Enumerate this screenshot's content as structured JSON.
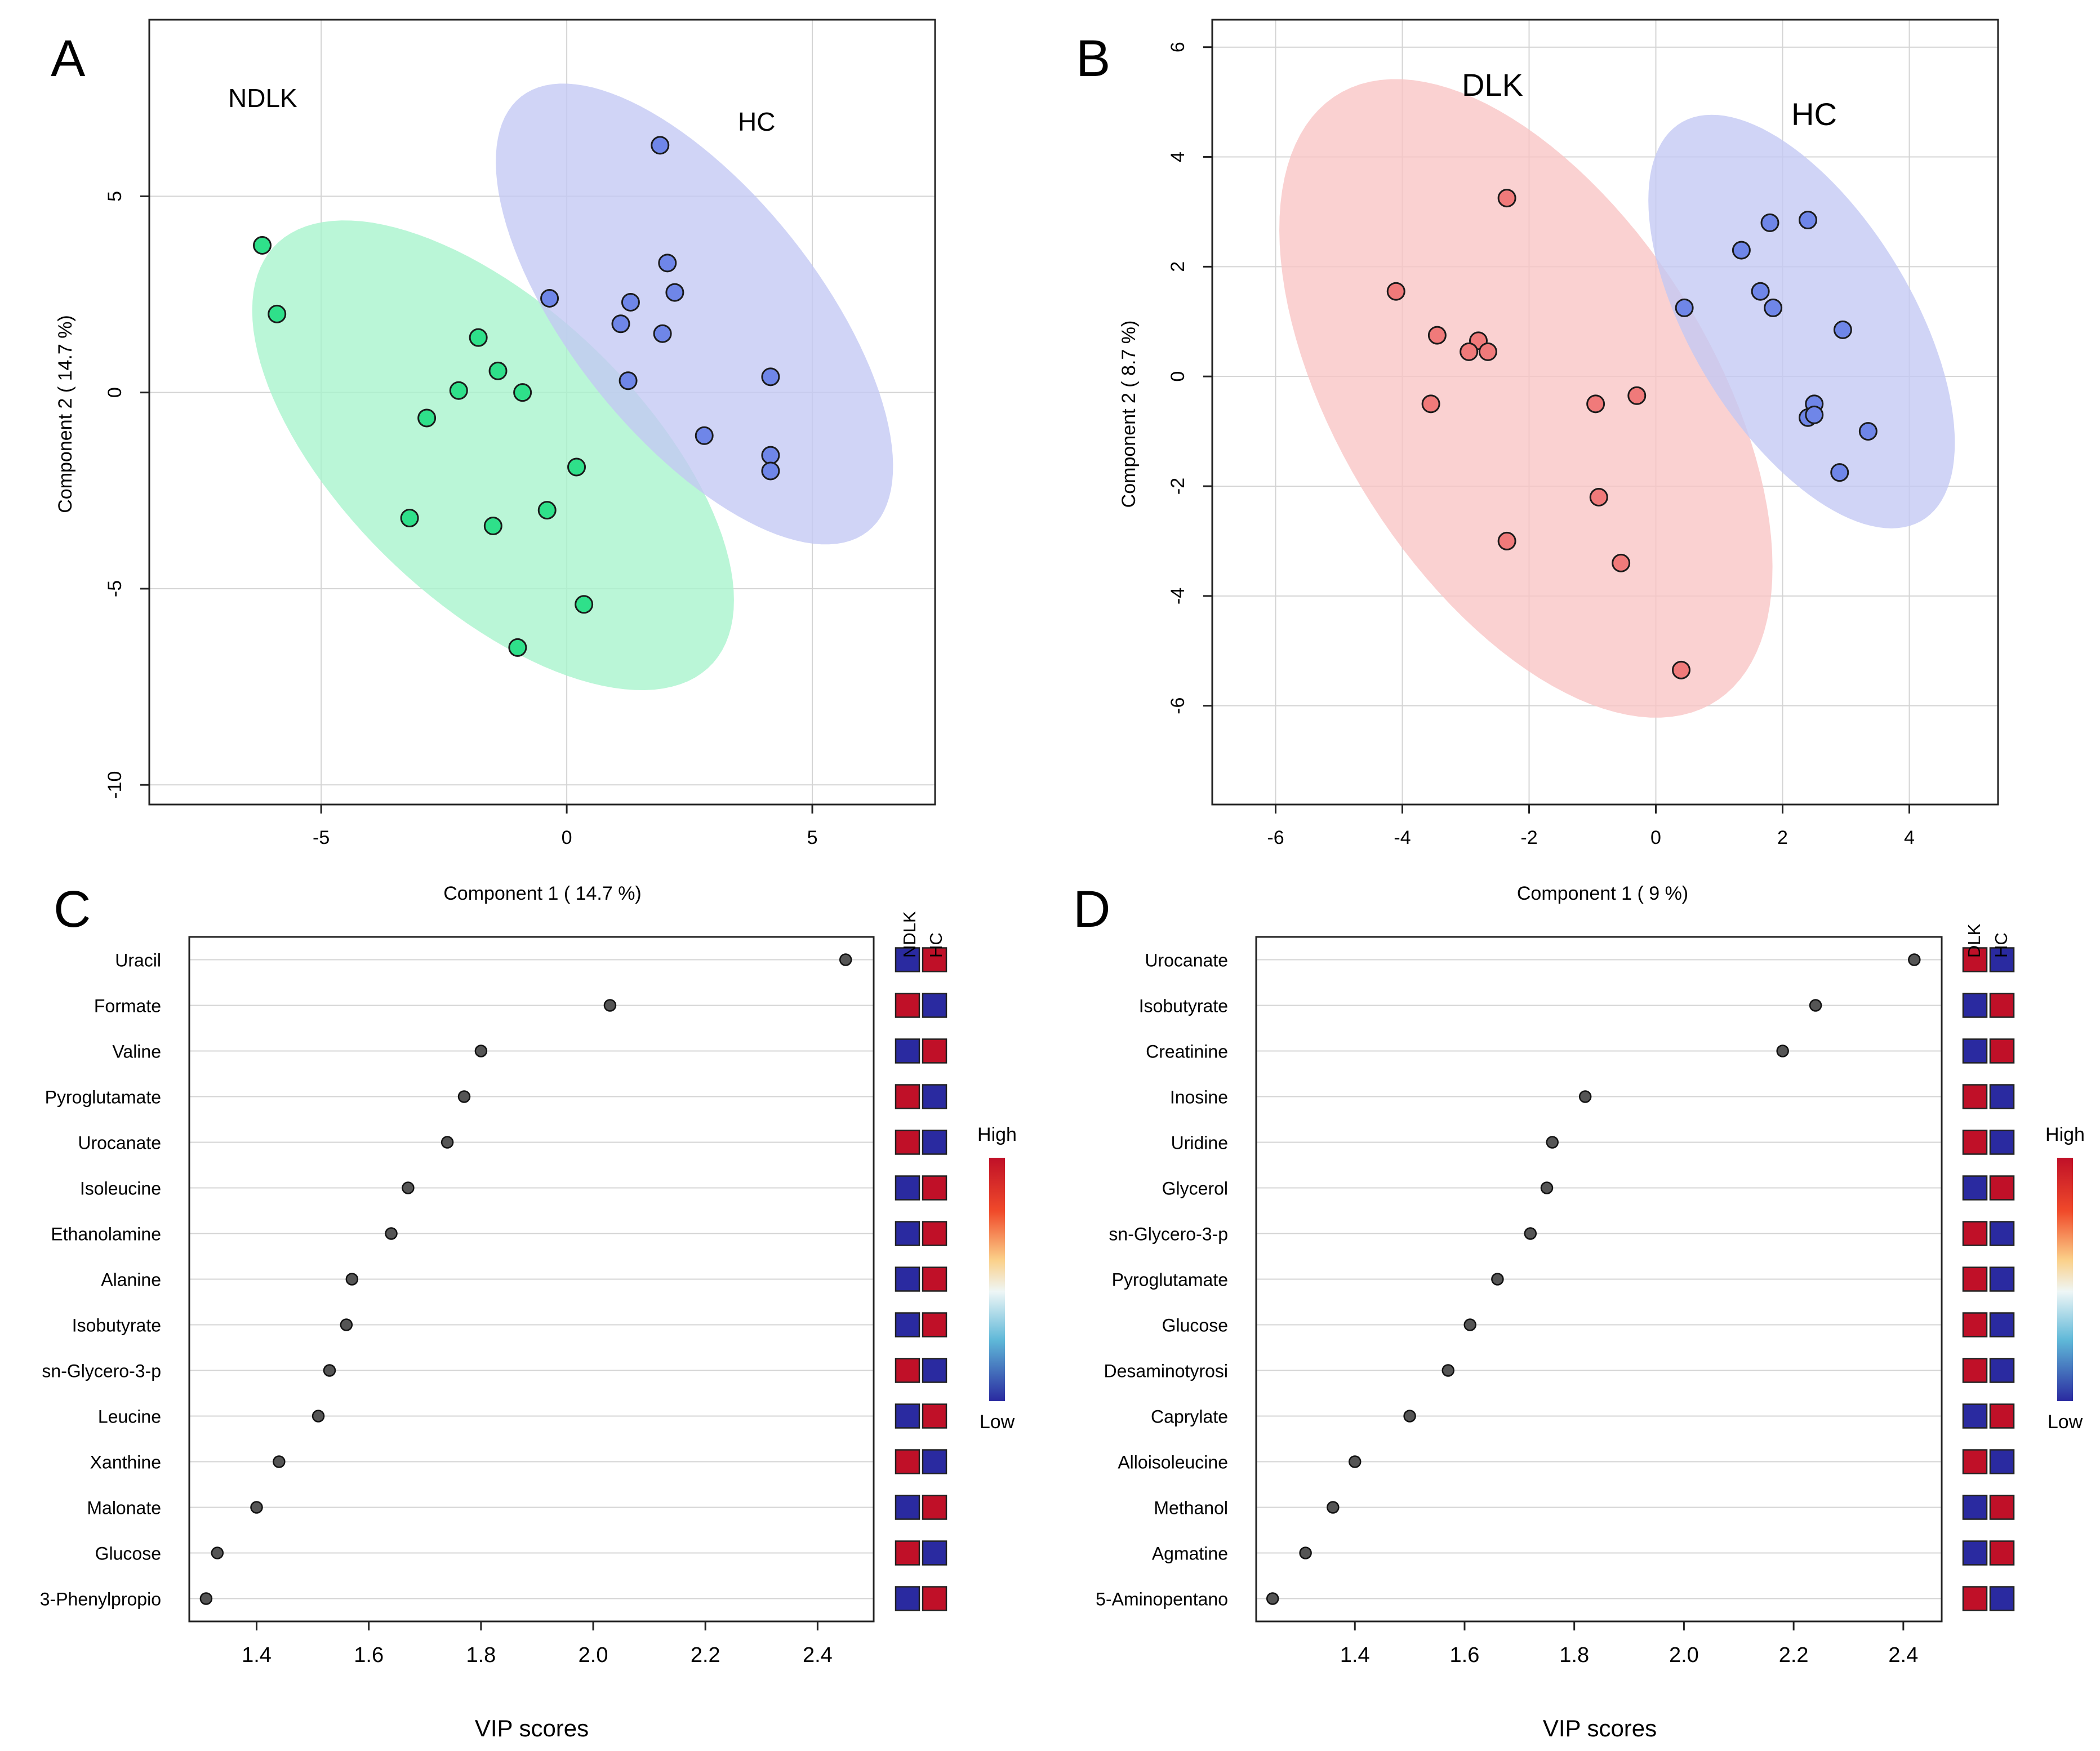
{
  "colors": {
    "ndlk_fill": "#a6f4cc",
    "ndlk_point": "#2fe08a",
    "hc_fill": "#c3c8f4",
    "hc_point": "#6f86e8",
    "dlk_fill": "#f8c4c4",
    "dlk_point": "#f07a7a",
    "high": "#c01028",
    "low": "#2a2aa0",
    "grid": "#d4d4d4"
  },
  "chart_data": [
    {
      "panel": "A",
      "type": "scatter",
      "xlabel": "Component 1 ( 14.7 %)",
      "ylabel": "Component 2 ( 14.7 %)",
      "xlim": [
        -8.5,
        7.5
      ],
      "ylim": [
        -10.5,
        9.5
      ],
      "xticks": [
        -5,
        0,
        5
      ],
      "xtick_labels": [
        "-5",
        "0",
        "5"
      ],
      "yticks": [
        -10,
        -5,
        0,
        5
      ],
      "ytick_labels": [
        "-10",
        "-5",
        "0",
        "5"
      ],
      "grid": true,
      "annotations": [
        "NDLK",
        "HC"
      ],
      "series": [
        {
          "name": "NDLK",
          "color": "#2fe08a",
          "ellipse_color": "#a6f4cc",
          "ellipse": {
            "cx": -1.5,
            "cy": -1.6,
            "rx": 7.0,
            "ry": 3.3,
            "angle_deg": -54
          },
          "points": [
            {
              "x": -6.2,
              "y": 3.75
            },
            {
              "x": -5.9,
              "y": 2.0
            },
            {
              "x": -1.8,
              "y": 1.4
            },
            {
              "x": -1.4,
              "y": 0.55
            },
            {
              "x": -2.2,
              "y": 0.05
            },
            {
              "x": -0.9,
              "y": 0.0
            },
            {
              "x": -2.85,
              "y": -0.65
            },
            {
              "x": 0.2,
              "y": -1.9
            },
            {
              "x": -3.2,
              "y": -3.2
            },
            {
              "x": -0.4,
              "y": -3.0
            },
            {
              "x": -1.5,
              "y": -3.4
            },
            {
              "x": 0.35,
              "y": -5.4
            },
            {
              "x": -1.0,
              "y": -6.5
            }
          ]
        },
        {
          "name": "HC",
          "color": "#6f86e8",
          "ellipse_color": "#c3c8f4",
          "ellipse": {
            "cx": 2.6,
            "cy": 2.0,
            "rx": 6.6,
            "ry": 2.7,
            "angle_deg": -60
          },
          "points": [
            {
              "x": 1.9,
              "y": 6.3
            },
            {
              "x": 2.05,
              "y": 3.3
            },
            {
              "x": 2.2,
              "y": 2.55
            },
            {
              "x": -0.35,
              "y": 2.4
            },
            {
              "x": 1.3,
              "y": 2.3
            },
            {
              "x": 1.1,
              "y": 1.75
            },
            {
              "x": 1.95,
              "y": 1.5
            },
            {
              "x": 4.15,
              "y": 0.4
            },
            {
              "x": 1.25,
              "y": 0.3
            },
            {
              "x": 2.8,
              "y": -1.1
            },
            {
              "x": 4.15,
              "y": -1.6
            },
            {
              "x": 4.15,
              "y": -2.0
            }
          ]
        }
      ]
    },
    {
      "panel": "B",
      "type": "scatter",
      "xlabel": "Component 1 ( 9 %)",
      "ylabel": "Component 2 ( 8.7 %)",
      "xlim": [
        -7.0,
        5.4
      ],
      "ylim": [
        -7.8,
        6.5
      ],
      "xticks": [
        -6,
        -4,
        -2,
        0,
        2,
        4
      ],
      "xtick_labels": [
        "-6",
        "-4",
        "-2",
        "0",
        "2",
        "4"
      ],
      "yticks": [
        -6,
        -4,
        -2,
        0,
        2,
        4,
        6
      ],
      "ytick_labels": [
        "-6",
        "-4",
        "-2",
        "0",
        "2",
        "4",
        "6"
      ],
      "grid": true,
      "annotations": [
        "DLK",
        "HC"
      ],
      "series": [
        {
          "name": "DLK",
          "color": "#f07a7a",
          "ellipse_color": "#f8c4c4",
          "ellipse": {
            "cx": -2.05,
            "cy": -0.4,
            "rx": 6.3,
            "ry": 3.05,
            "angle_deg": -64
          },
          "points": [
            {
              "x": -2.35,
              "y": 3.25
            },
            {
              "x": -4.1,
              "y": 1.55
            },
            {
              "x": -3.45,
              "y": 0.75
            },
            {
              "x": -2.8,
              "y": 0.65
            },
            {
              "x": -2.65,
              "y": 0.45
            },
            {
              "x": -2.95,
              "y": 0.45
            },
            {
              "x": -3.55,
              "y": -0.5
            },
            {
              "x": -0.3,
              "y": -0.35
            },
            {
              "x": -0.95,
              "y": -0.5
            },
            {
              "x": -0.9,
              "y": -2.2
            },
            {
              "x": -2.35,
              "y": -3.0
            },
            {
              "x": -0.55,
              "y": -3.4
            },
            {
              "x": 0.4,
              "y": -5.35
            }
          ]
        },
        {
          "name": "HC",
          "color": "#6f86e8",
          "ellipse_color": "#c3c8f4",
          "ellipse": {
            "cx": 2.3,
            "cy": 1.0,
            "rx": 4.1,
            "ry": 1.8,
            "angle_deg": -64
          },
          "points": [
            {
              "x": 2.4,
              "y": 2.85
            },
            {
              "x": 1.8,
              "y": 2.8
            },
            {
              "x": 1.35,
              "y": 2.3
            },
            {
              "x": 1.65,
              "y": 1.55
            },
            {
              "x": 1.85,
              "y": 1.25
            },
            {
              "x": 0.45,
              "y": 1.25
            },
            {
              "x": 2.95,
              "y": 0.85
            },
            {
              "x": 2.5,
              "y": -0.5
            },
            {
              "x": 2.4,
              "y": -0.75
            },
            {
              "x": 2.5,
              "y": -0.7
            },
            {
              "x": 3.35,
              "y": -1.0
            },
            {
              "x": 2.9,
              "y": -1.75
            }
          ]
        }
      ]
    },
    {
      "panel": "C",
      "type": "scatter",
      "xlabel": "VIP scores",
      "xlim": [
        1.28,
        2.5
      ],
      "xticks": [
        1.4,
        1.6,
        1.8,
        2.0,
        2.2,
        2.4
      ],
      "xtick_labels": [
        "1.4",
        "1.6",
        "1.8",
        "2.0",
        "2.2",
        "2.4"
      ],
      "groups": [
        "NDLK",
        "HC"
      ],
      "legend_high": "High",
      "legend_low": "Low",
      "features": [
        "Uracil",
        "Formate",
        "Valine",
        "Pyroglutamate",
        "Urocanate",
        "Isoleucine",
        "Ethanolamine",
        "Alanine",
        "Isobutyrate",
        "sn-Glycero-3-p",
        "Leucine",
        "Xanthine",
        "Malonate",
        "Glucose",
        "3-Phenylpropio"
      ],
      "values": [
        2.45,
        2.03,
        1.8,
        1.77,
        1.74,
        1.67,
        1.64,
        1.57,
        1.56,
        1.53,
        1.51,
        1.44,
        1.4,
        1.33,
        1.31
      ],
      "heatmap": [
        [
          "low",
          "high"
        ],
        [
          "high",
          "low"
        ],
        [
          "low",
          "high"
        ],
        [
          "high",
          "low"
        ],
        [
          "high",
          "low"
        ],
        [
          "low",
          "high"
        ],
        [
          "low",
          "high"
        ],
        [
          "low",
          "high"
        ],
        [
          "low",
          "high"
        ],
        [
          "high",
          "low"
        ],
        [
          "low",
          "high"
        ],
        [
          "high",
          "low"
        ],
        [
          "low",
          "high"
        ],
        [
          "high",
          "low"
        ],
        [
          "low",
          "high"
        ]
      ]
    },
    {
      "panel": "D",
      "type": "scatter",
      "xlabel": "VIP scores",
      "xlim": [
        1.22,
        2.47
      ],
      "xticks": [
        1.4,
        1.6,
        1.8,
        2.0,
        2.2,
        2.4
      ],
      "xtick_labels": [
        "1.4",
        "1.6",
        "1.8",
        "2.0",
        "2.2",
        "2.4"
      ],
      "groups": [
        "DLK",
        "HC"
      ],
      "legend_high": "High",
      "legend_low": "Low",
      "features": [
        "Urocanate",
        "Isobutyrate",
        "Creatinine",
        "Inosine",
        "Uridine",
        "Glycerol",
        "sn-Glycero-3-p",
        "Pyroglutamate",
        "Glucose",
        "Desaminotyrosi",
        "Caprylate",
        "Alloisoleucine",
        "Methanol",
        "Agmatine",
        "5-Aminopentano"
      ],
      "values": [
        2.42,
        2.24,
        2.18,
        1.82,
        1.76,
        1.75,
        1.72,
        1.66,
        1.61,
        1.57,
        1.5,
        1.4,
        1.36,
        1.31,
        1.25
      ],
      "heatmap": [
        [
          "high",
          "low"
        ],
        [
          "low",
          "high"
        ],
        [
          "low",
          "high"
        ],
        [
          "high",
          "low"
        ],
        [
          "high",
          "low"
        ],
        [
          "low",
          "high"
        ],
        [
          "high",
          "low"
        ],
        [
          "high",
          "low"
        ],
        [
          "high",
          "low"
        ],
        [
          "high",
          "low"
        ],
        [
          "low",
          "high"
        ],
        [
          "high",
          "low"
        ],
        [
          "low",
          "high"
        ],
        [
          "low",
          "high"
        ],
        [
          "high",
          "low"
        ]
      ]
    }
  ]
}
